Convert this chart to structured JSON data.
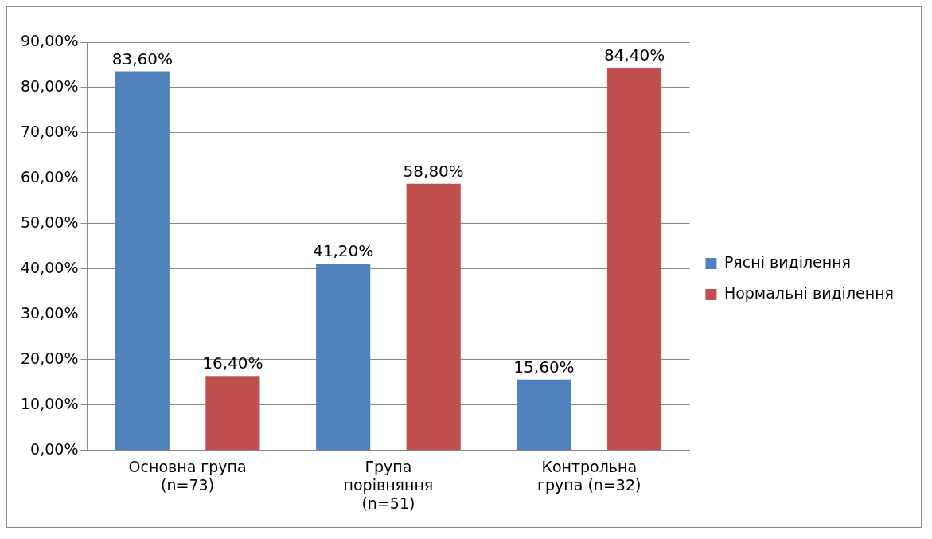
{
  "chart_data": {
    "type": "bar",
    "categories": [
      "Основна група (n=73)",
      "Група порівняння (n=51)",
      "Контрольна група (n=32)"
    ],
    "series": [
      {
        "name": "Рясні виділення",
        "color": "#4f81bd",
        "values": [
          83.6,
          41.2,
          15.6
        ],
        "value_labels": [
          "83,60%",
          "41,20%",
          "15,60%"
        ]
      },
      {
        "name": "Нормальні виділення",
        "color": "#c0504d",
        "values": [
          16.4,
          58.8,
          84.4
        ],
        "value_labels": [
          "16,40%",
          "58,80%",
          "84,40%"
        ]
      }
    ],
    "ylim": [
      0,
      90
    ],
    "yticks": [
      {
        "value": 0,
        "label": "0,00%"
      },
      {
        "value": 10,
        "label": "10,00%"
      },
      {
        "value": 20,
        "label": "20,00%"
      },
      {
        "value": 30,
        "label": "30,00%"
      },
      {
        "value": 40,
        "label": "40,00%"
      },
      {
        "value": 50,
        "label": "50,00%"
      },
      {
        "value": 60,
        "label": "60,00%"
      },
      {
        "value": 70,
        "label": "70,00%"
      },
      {
        "value": 80,
        "label": "80,00%"
      },
      {
        "value": 90,
        "label": "90,00%"
      }
    ],
    "grid": "y",
    "legend": "right"
  }
}
